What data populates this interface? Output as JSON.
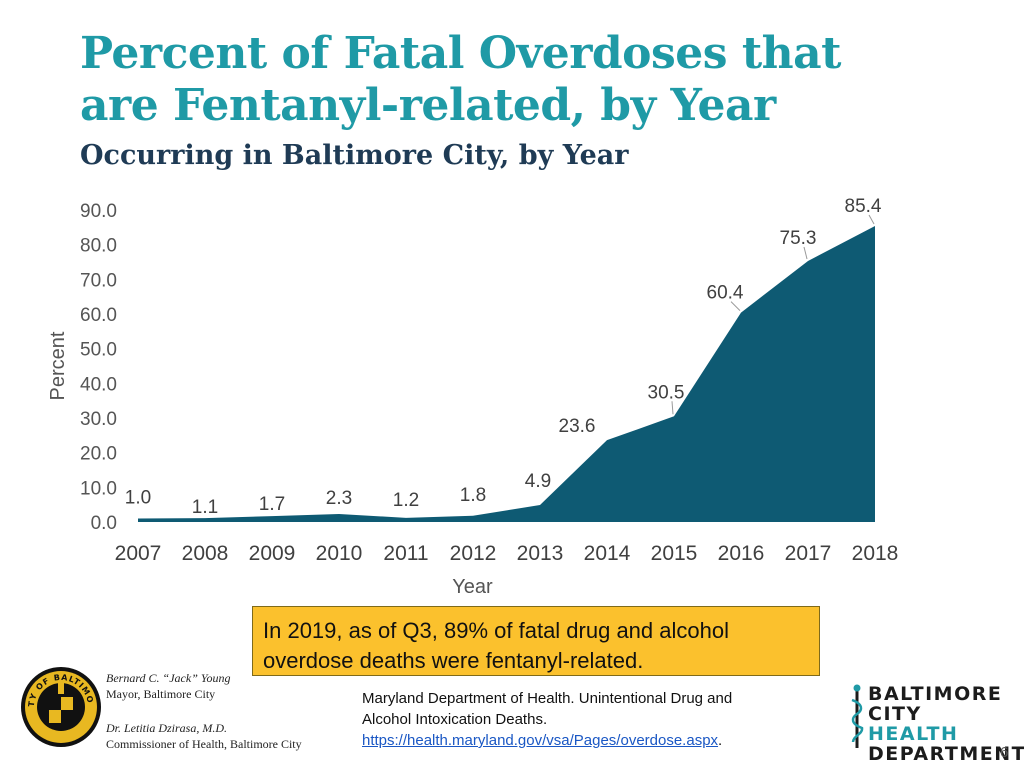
{
  "slide": {
    "title_line1": "Percent of Fatal Overdoses that",
    "title_line2": "are Fentanyl-related, by Year",
    "subtitle": "Occurring in Baltimore City, by Year",
    "page_number": "6"
  },
  "chart_data": {
    "type": "area",
    "title": "Percent of Fatal Overdoses that are Fentanyl-related, by Year",
    "xlabel": "Year",
    "ylabel": "Percent",
    "x": [
      "2007",
      "2008",
      "2009",
      "2010",
      "2011",
      "2012",
      "2013",
      "2014",
      "2015",
      "2016",
      "2017",
      "2018"
    ],
    "values": [
      1.0,
      1.1,
      1.7,
      2.3,
      1.2,
      1.8,
      4.9,
      23.6,
      30.5,
      60.4,
      75.3,
      85.4
    ],
    "data_labels": [
      "1.0",
      "1.1",
      "1.7",
      "2.3",
      "1.2",
      "1.8",
      "4.9",
      "23.6",
      "30.5",
      "60.4",
      "75.3",
      "85.4"
    ],
    "yticks": [
      "0.0",
      "10.0",
      "20.0",
      "30.0",
      "40.0",
      "50.0",
      "60.0",
      "70.0",
      "80.0",
      "90.0"
    ],
    "ylim": [
      0,
      90
    ],
    "grid": false,
    "colors": {
      "area": "#0e5a73",
      "text": "#404040",
      "axis_text": "#555555"
    }
  },
  "callout": {
    "text": "In 2019, as of Q3, 89% of fatal drug and alcohol overdose deaths were fentanyl-related."
  },
  "footer": {
    "mayor_name": "Bernard C. “Jack” Young",
    "mayor_title": "Mayor, Baltimore City",
    "commissioner_name": "Dr. Letitia Dzirasa, M.D.",
    "commissioner_title": "Commissioner of Health, Baltimore City",
    "seal_text": "CITY OF BALTIMORE",
    "source_line1": "Maryland Department of Health.  Unintentional Drug and",
    "source_line2": "Alcohol Intoxication Deaths.",
    "source_link": "https://health.maryland.gov/vsa/Pages/overdose.aspx",
    "source_period": ".",
    "logo_line1": "BALTIMORE",
    "logo_line2a": "CITY ",
    "logo_line2b": "HEALTH",
    "logo_line3": "DEPARTMENT"
  }
}
